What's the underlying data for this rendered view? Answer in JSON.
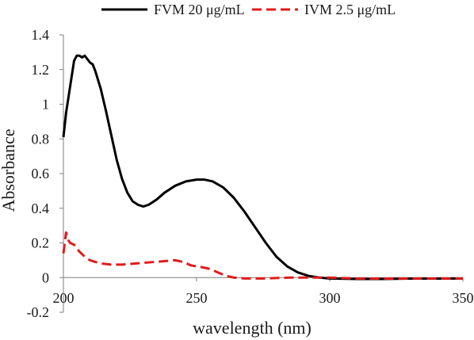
{
  "chart_data": {
    "type": "line",
    "title": "",
    "xlabel": "wavelength (nm)",
    "ylabel": "Absorbance",
    "xlim": [
      200,
      350
    ],
    "ylim": [
      -0.2,
      1.4
    ],
    "x_ticks": [
      200,
      250,
      300,
      350
    ],
    "x_tick_labels": [
      "200",
      "250",
      "300",
      "350"
    ],
    "y_ticks": [
      -0.2,
      0,
      0.2,
      0.4,
      0.6,
      0.8,
      1,
      1.2,
      1.4
    ],
    "y_tick_labels": [
      "-0.2",
      "0",
      "0.2",
      "0.4",
      "0.6",
      "0.8",
      "1",
      "1.2",
      "1.4"
    ],
    "grid": false,
    "legend_position": "top",
    "series": [
      {
        "name": "FVM 20 μg/mL",
        "color": "#000000",
        "dash": "solid",
        "points": [
          [
            200,
            0.81
          ],
          [
            201,
            0.95
          ],
          [
            202,
            1.05
          ],
          [
            203,
            1.15
          ],
          [
            204,
            1.25
          ],
          [
            205,
            1.28
          ],
          [
            206,
            1.28
          ],
          [
            207,
            1.27
          ],
          [
            208,
            1.28
          ],
          [
            209,
            1.26
          ],
          [
            210,
            1.24
          ],
          [
            211,
            1.23
          ],
          [
            212,
            1.19
          ],
          [
            214,
            1.09
          ],
          [
            216,
            0.96
          ],
          [
            218,
            0.82
          ],
          [
            220,
            0.68
          ],
          [
            222,
            0.57
          ],
          [
            224,
            0.49
          ],
          [
            226,
            0.44
          ],
          [
            228,
            0.42
          ],
          [
            230,
            0.41
          ],
          [
            232,
            0.42
          ],
          [
            235,
            0.45
          ],
          [
            238,
            0.49
          ],
          [
            242,
            0.53
          ],
          [
            246,
            0.555
          ],
          [
            250,
            0.565
          ],
          [
            253,
            0.565
          ],
          [
            256,
            0.555
          ],
          [
            260,
            0.52
          ],
          [
            264,
            0.46
          ],
          [
            268,
            0.38
          ],
          [
            272,
            0.29
          ],
          [
            276,
            0.2
          ],
          [
            280,
            0.12
          ],
          [
            284,
            0.065
          ],
          [
            288,
            0.03
          ],
          [
            292,
            0.01
          ],
          [
            296,
            0.0
          ],
          [
            300,
            -0.005
          ],
          [
            310,
            -0.008
          ],
          [
            320,
            -0.008
          ],
          [
            330,
            -0.006
          ],
          [
            340,
            -0.006
          ],
          [
            350,
            -0.005
          ]
        ]
      },
      {
        "name": "IVM 2.5 μg/mL",
        "color": "#e31a1c",
        "dash": "dashed",
        "points": [
          [
            200,
            0.14
          ],
          [
            200.5,
            0.2
          ],
          [
            201,
            0.26
          ],
          [
            201.7,
            0.22
          ],
          [
            202.5,
            0.2
          ],
          [
            204,
            0.19
          ],
          [
            206,
            0.15
          ],
          [
            208,
            0.12
          ],
          [
            210,
            0.1
          ],
          [
            212,
            0.09
          ],
          [
            215,
            0.08
          ],
          [
            218,
            0.075
          ],
          [
            222,
            0.075
          ],
          [
            226,
            0.08
          ],
          [
            230,
            0.085
          ],
          [
            234,
            0.09
          ],
          [
            238,
            0.095
          ],
          [
            242,
            0.1
          ],
          [
            245,
            0.09
          ],
          [
            248,
            0.07
          ],
          [
            252,
            0.06
          ],
          [
            255,
            0.05
          ],
          [
            258,
            0.03
          ],
          [
            261,
            0.01
          ],
          [
            264,
            0.0
          ],
          [
            268,
            -0.005
          ],
          [
            275,
            -0.005
          ],
          [
            285,
            0.0
          ],
          [
            295,
            0.0
          ],
          [
            300,
            0.0
          ],
          [
            310,
            -0.005
          ],
          [
            320,
            -0.006
          ],
          [
            330,
            -0.005
          ],
          [
            340,
            -0.005
          ],
          [
            350,
            -0.005
          ]
        ]
      }
    ]
  }
}
